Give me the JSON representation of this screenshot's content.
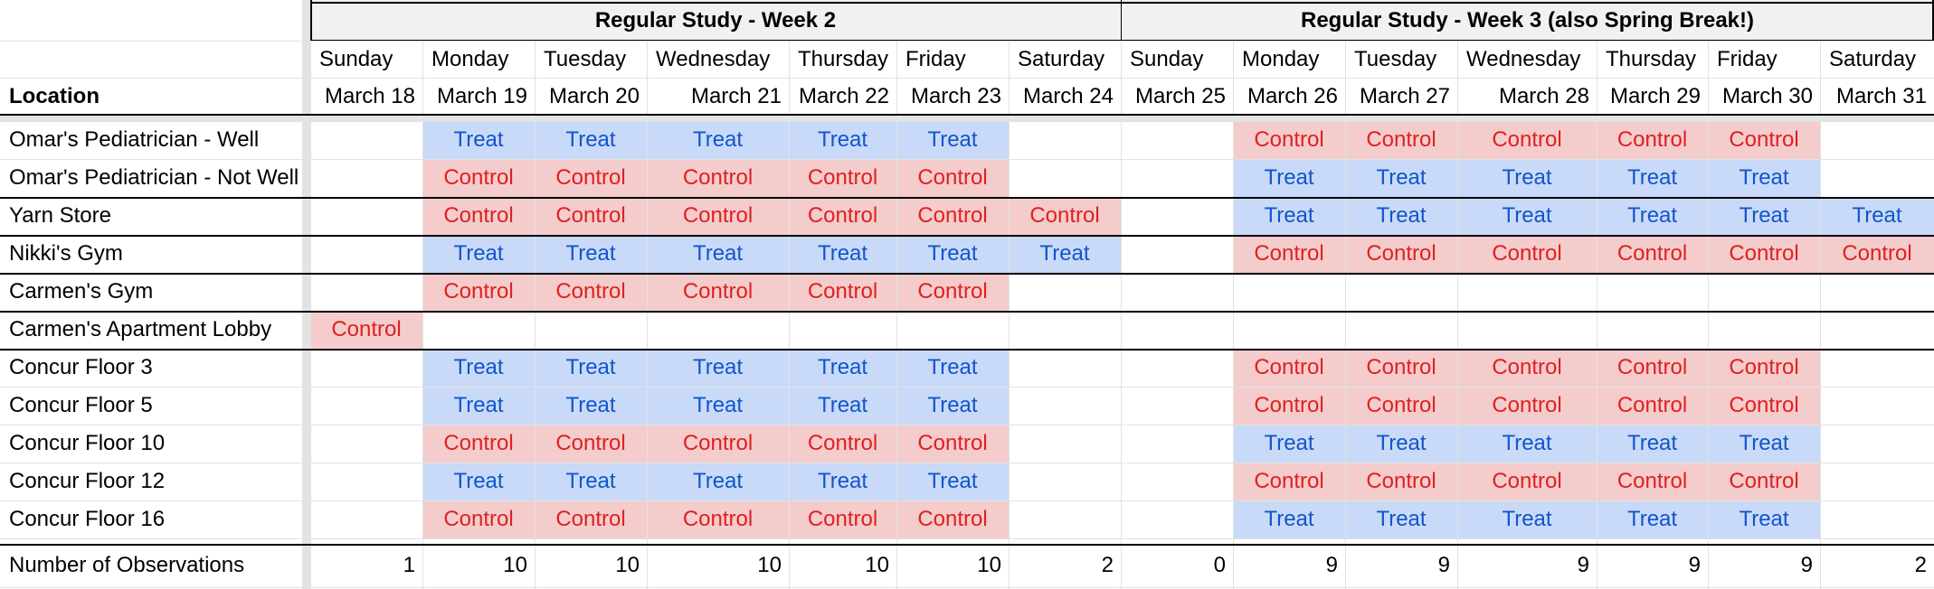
{
  "sheet": {
    "week_headers": [
      "Regular Study - Week 2",
      "Regular Study - Week 3 (also Spring Break!)"
    ],
    "days": [
      "Sunday",
      "Monday",
      "Tuesday",
      "Wednesday",
      "Thursday",
      "Friday",
      "Saturday",
      "Sunday",
      "Monday",
      "Tuesday",
      "Wednesday",
      "Thursday",
      "Friday",
      "Saturday"
    ],
    "location_label": "Location",
    "dates": [
      "March 18",
      "March 19",
      "March 20",
      "March 21",
      "March 22",
      "March 23",
      "March 24",
      "March 25",
      "March 26",
      "March 27",
      "March 28",
      "March 29",
      "March 30",
      "March 31"
    ],
    "rows": [
      {
        "label": "Omar's Pediatrician - Well",
        "cells": [
          "",
          "Treat",
          "Treat",
          "Treat",
          "Treat",
          "Treat",
          "",
          "",
          "Control",
          "Control",
          "Control",
          "Control",
          "Control",
          ""
        ]
      },
      {
        "label": "Omar's Pediatrician - Not Well",
        "cells": [
          "",
          "Control",
          "Control",
          "Control",
          "Control",
          "Control",
          "",
          "",
          "Treat",
          "Treat",
          "Treat",
          "Treat",
          "Treat",
          ""
        ]
      },
      {
        "label": "Yarn Store",
        "cells": [
          "",
          "Control",
          "Control",
          "Control",
          "Control",
          "Control",
          "Control",
          "",
          "Treat",
          "Treat",
          "Treat",
          "Treat",
          "Treat",
          "Treat"
        ]
      },
      {
        "label": "Nikki's Gym",
        "cells": [
          "",
          "Treat",
          "Treat",
          "Treat",
          "Treat",
          "Treat",
          "Treat",
          "",
          "Control",
          "Control",
          "Control",
          "Control",
          "Control",
          "Control"
        ]
      },
      {
        "label": "Carmen's Gym",
        "cells": [
          "",
          "Control",
          "Control",
          "Control",
          "Control",
          "Control",
          "",
          "",
          "",
          "",
          "",
          "",
          "",
          ""
        ]
      },
      {
        "label": "Carmen's Apartment Lobby",
        "cells": [
          "Control",
          "",
          "",
          "",
          "",
          "",
          "",
          "",
          "",
          "",
          "",
          "",
          "",
          ""
        ]
      },
      {
        "label": "Concur Floor 3",
        "cells": [
          "",
          "Treat",
          "Treat",
          "Treat",
          "Treat",
          "Treat",
          "",
          "",
          "Control",
          "Control",
          "Control",
          "Control",
          "Control",
          ""
        ]
      },
      {
        "label": "Concur Floor 5",
        "cells": [
          "",
          "Treat",
          "Treat",
          "Treat",
          "Treat",
          "Treat",
          "",
          "",
          "Control",
          "Control",
          "Control",
          "Control",
          "Control",
          ""
        ]
      },
      {
        "label": "Concur Floor 10",
        "cells": [
          "",
          "Control",
          "Control",
          "Control",
          "Control",
          "Control",
          "",
          "",
          "Treat",
          "Treat",
          "Treat",
          "Treat",
          "Treat",
          ""
        ]
      },
      {
        "label": "Concur Floor 12",
        "cells": [
          "",
          "Treat",
          "Treat",
          "Treat",
          "Treat",
          "Treat",
          "",
          "",
          "Control",
          "Control",
          "Control",
          "Control",
          "Control",
          ""
        ]
      },
      {
        "label": "Concur Floor 16",
        "cells": [
          "",
          "Control",
          "Control",
          "Control",
          "Control",
          "Control",
          "",
          "",
          "Treat",
          "Treat",
          "Treat",
          "Treat",
          "Treat",
          ""
        ]
      }
    ],
    "observations_label": "Number of Observations",
    "observations": [
      "1",
      "10",
      "10",
      "10",
      "10",
      "10",
      "2",
      "0",
      "9",
      "9",
      "9",
      "9",
      "9",
      "2"
    ]
  },
  "colors": {
    "treat_bg": "#c9daf8",
    "treat_text": "#1155cc",
    "control_bg": "#f4cccc",
    "control_text": "#e02020",
    "grid": "#e2e2e2",
    "border": "#000000",
    "group_bg": "#f1f1f1"
  }
}
